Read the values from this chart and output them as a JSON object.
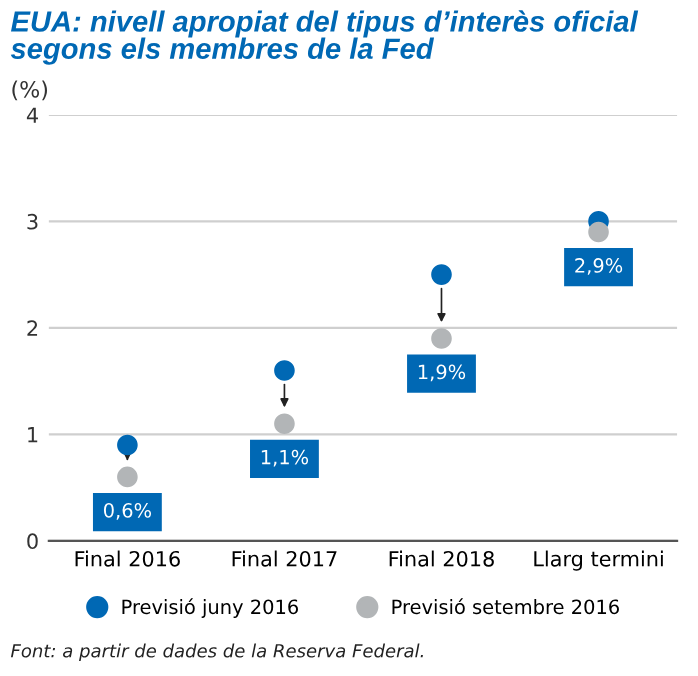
{
  "chart_data": {
    "type": "scatter",
    "title": "EUA: nivell apropiat del tipus d’interès oficial\nsegons els membres de la Fed",
    "ylabel": "(%)",
    "categories": [
      "Final 2016",
      "Final 2017",
      "Final 2018",
      "Llarg termini"
    ],
    "series": [
      {
        "name": "Previsió juny 2016",
        "color": "#0068b4",
        "values": [
          0.9,
          1.6,
          2.5,
          3.0
        ]
      },
      {
        "name": "Previsió setembre 2016",
        "color": "#b2b5b7",
        "values": [
          0.6,
          1.1,
          1.9,
          2.9
        ],
        "value_labels": [
          "0,6%",
          "1,1%",
          "1,9%",
          "2,9%"
        ]
      }
    ],
    "ylim": [
      0,
      4
    ],
    "yticks": [
      0,
      1,
      2,
      3,
      4
    ],
    "grid": "y",
    "legend": "bottom",
    "marker": "circle",
    "annotations": [
      "Font: a partir de dades de la Reserva Federal."
    ]
  }
}
